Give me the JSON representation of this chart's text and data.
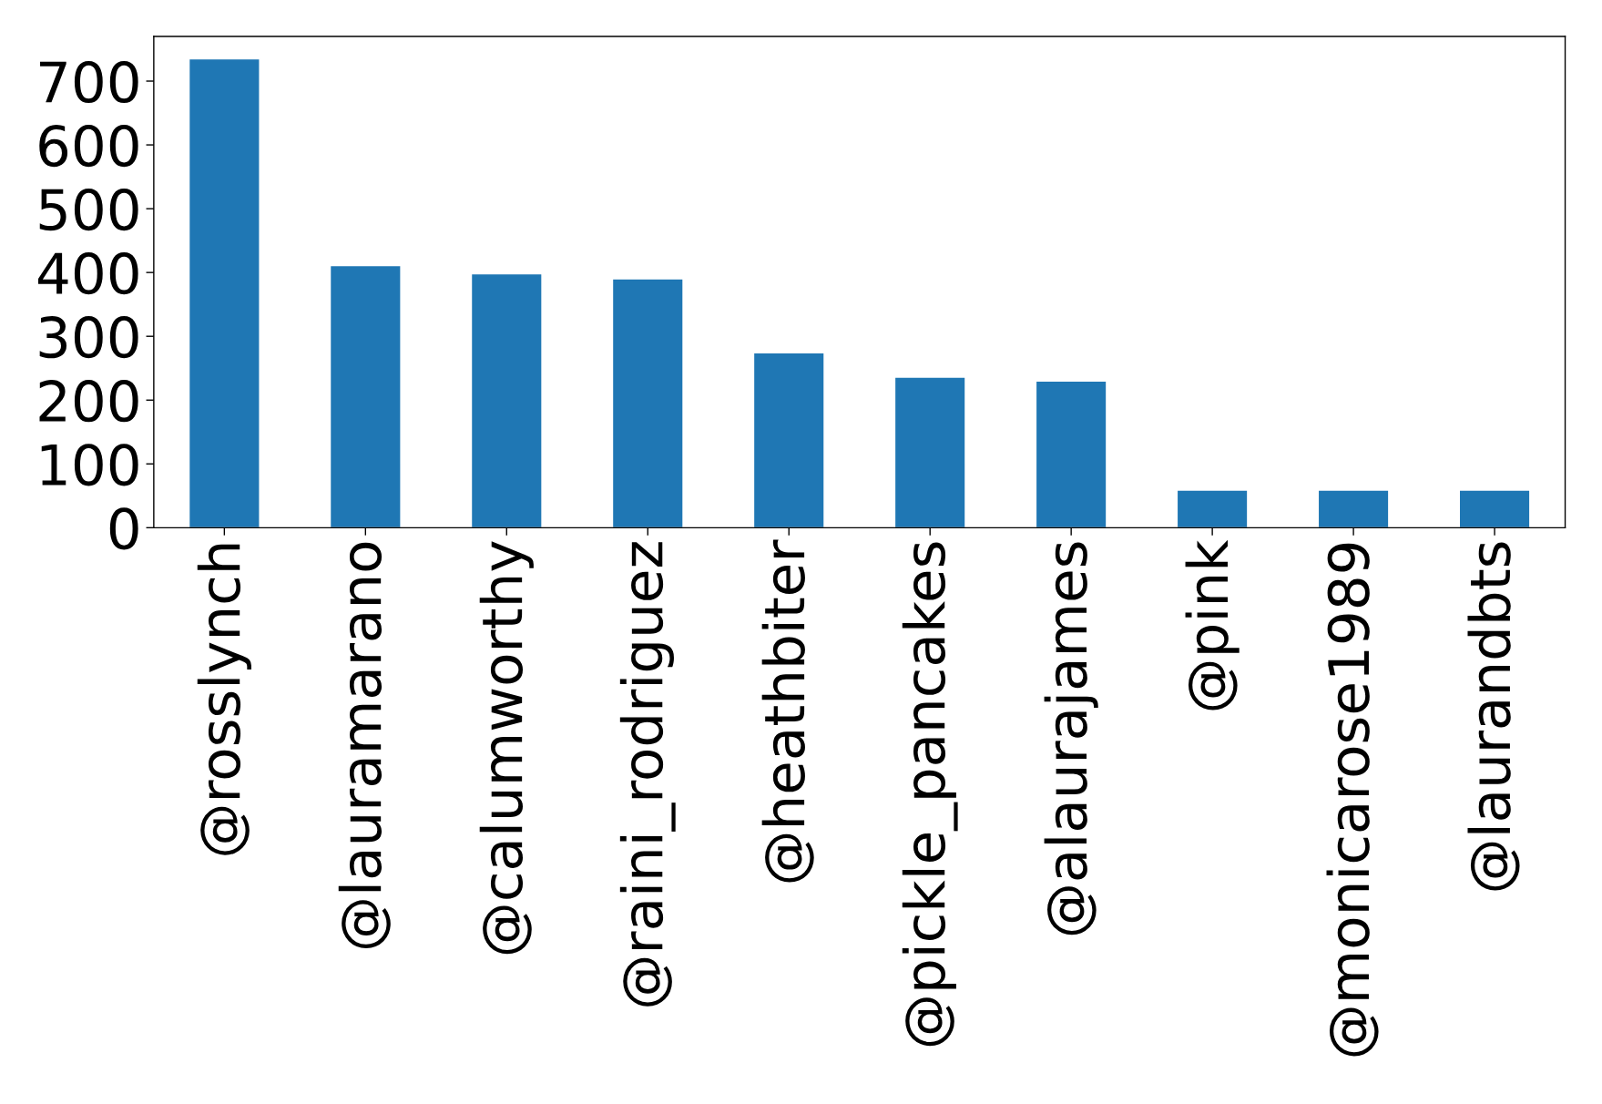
{
  "chart_data": {
    "type": "bar",
    "categories": [
      "@rosslynch",
      "@lauramarano",
      "@calumworthy",
      "@raini_rodriguez",
      "@heathbiter",
      "@pickle_pancakes",
      "@alaurajames",
      "@pink",
      "@monicarose1989",
      "@laurandbts"
    ],
    "values": [
      735,
      411,
      398,
      390,
      274,
      236,
      230,
      59,
      59,
      59
    ],
    "color": "#1f77b4",
    "ylim": [
      0,
      770
    ],
    "yticks": [
      0,
      100,
      200,
      300,
      400,
      500,
      600,
      700
    ],
    "grid": false
  }
}
